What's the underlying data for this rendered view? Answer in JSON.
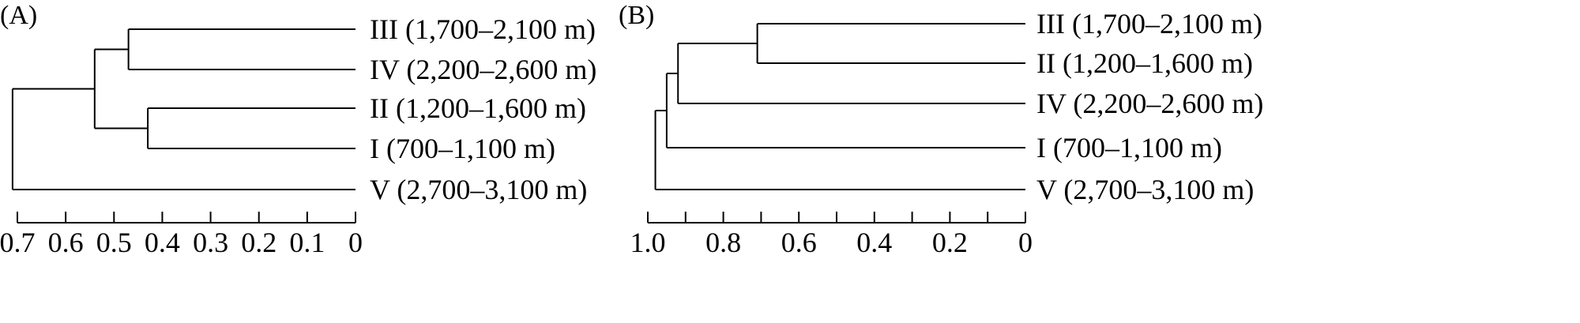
{
  "chart_data": [
    {
      "type": "dendrogram",
      "panel_label": "(A)",
      "leaves": [
        "III (1,700–2,100 m)",
        "IV (2,200–2,600 m)",
        "II (1,200–1,600 m)",
        "I (700–1,100 m)",
        "V (2,700–3,100 m)"
      ],
      "merges": [
        {
          "members": [
            "III",
            "IV"
          ],
          "height": 0.47
        },
        {
          "members": [
            "II",
            "I"
          ],
          "height": 0.43
        },
        {
          "members": [
            "III+IV",
            "II+I"
          ],
          "height": 0.54
        },
        {
          "members": [
            "III+IV+II+I",
            "V"
          ],
          "height": 0.71
        }
      ],
      "xlim": [
        0.7,
        0
      ],
      "ticks": [
        0.7,
        0.6,
        0.5,
        0.4,
        0.3,
        0.2,
        0.1,
        0
      ],
      "tick_labels": [
        "0.7",
        "0.6",
        "0.5",
        "0.4",
        "0.3",
        "0.2",
        "0.1",
        "0"
      ]
    },
    {
      "type": "dendrogram",
      "panel_label": "(B)",
      "leaves": [
        "III (1,700–2,100 m)",
        "II (1,200–1,600 m)",
        "IV (2,200–2,600 m)",
        "I (700–1,100 m)",
        "V (2,700–3,100 m)"
      ],
      "merges": [
        {
          "members": [
            "III",
            "II"
          ],
          "height": 0.71
        },
        {
          "members": [
            "III+II",
            "IV"
          ],
          "height": 0.92
        },
        {
          "members": [
            "III+II+IV",
            "I"
          ],
          "height": 0.95
        },
        {
          "members": [
            "III+II+IV+I",
            "V"
          ],
          "height": 0.98
        }
      ],
      "xlim": [
        1.0,
        0
      ],
      "ticks": [
        1.0,
        0.9,
        0.8,
        0.7,
        0.6,
        0.5,
        0.4,
        0.3,
        0.2,
        0.1,
        0
      ],
      "tick_labels": [
        "1.0",
        "",
        "0.8",
        "",
        "0.6",
        "",
        "0.4",
        "",
        "0.2",
        "",
        "0"
      ]
    }
  ]
}
